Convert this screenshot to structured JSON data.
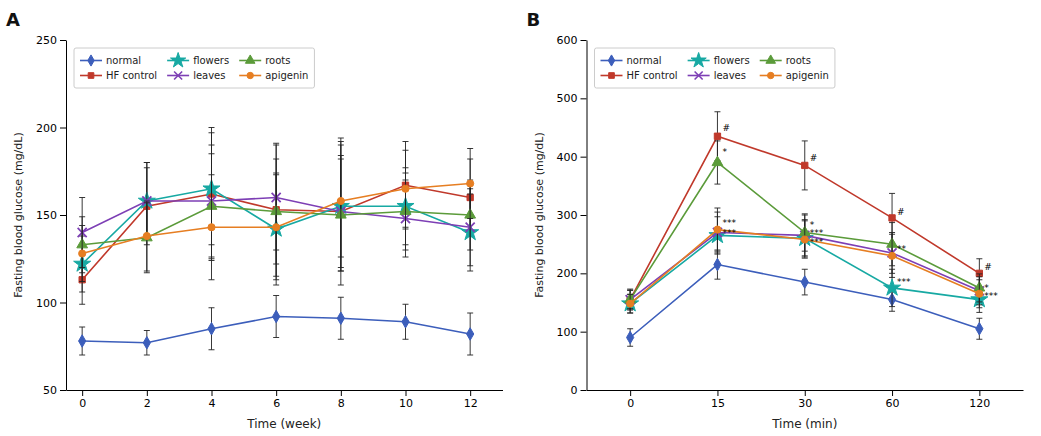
{
  "chart_data": [
    {
      "type": "line",
      "title": "A",
      "xlabel": "Time (week)",
      "ylabel": "Fasting blood glucose (mg/dL)",
      "x": [
        0,
        2,
        4,
        6,
        8,
        10,
        12
      ],
      "xlim": [
        -0.5,
        13
      ],
      "xticks": [
        0,
        2,
        4,
        6,
        8,
        10,
        12
      ],
      "ylim": [
        50,
        250
      ],
      "yticks": [
        50,
        100,
        150,
        200,
        250
      ],
      "legend": "upper left",
      "grid": false,
      "series": [
        {
          "name": "normal",
          "color": "#3C5EBB",
          "marker": "diamond",
          "values": [
            78,
            77,
            85,
            92,
            91,
            89,
            82
          ],
          "errors": [
            8,
            7,
            12,
            12,
            12,
            10,
            12
          ]
        },
        {
          "name": "HF control",
          "color": "#C0392B",
          "marker": "square",
          "values": [
            113,
            155,
            162,
            153,
            152,
            167,
            160
          ],
          "errors": [
            14,
            22,
            38,
            38,
            42,
            25,
            22
          ]
        },
        {
          "name": "flowers",
          "color": "#17A9A3",
          "marker": "star",
          "values": [
            122,
            158,
            165,
            142,
            155,
            155,
            140
          ],
          "errors": [
            16,
            22,
            32,
            32,
            37,
            22,
            22
          ]
        },
        {
          "name": "leaves",
          "color": "#7D3FB5",
          "marker": "x",
          "values": [
            140,
            158,
            158,
            160,
            152,
            148,
            143
          ],
          "errors": [
            20,
            22,
            32,
            30,
            32,
            22,
            22
          ]
        },
        {
          "name": "roots",
          "color": "#5B9B3A",
          "marker": "triangle",
          "values": [
            133,
            137,
            155,
            152,
            150,
            152,
            150
          ],
          "errors": [
            16,
            20,
            30,
            30,
            32,
            22,
            20
          ]
        },
        {
          "name": "apigenin",
          "color": "#E67E22",
          "marker": "circle",
          "values": [
            128,
            138,
            143,
            143,
            158,
            165,
            168
          ],
          "errors": [
            16,
            20,
            30,
            30,
            32,
            22,
            20
          ]
        }
      ]
    },
    {
      "type": "line",
      "title": "B",
      "xlabel": "Time (min)",
      "ylabel": "Fasting blood glucose (mg/dL)",
      "categories": [
        "0",
        "15",
        "30",
        "60",
        "120"
      ],
      "ylim": [
        0,
        600
      ],
      "yticks": [
        0,
        100,
        200,
        300,
        400,
        500,
        600
      ],
      "legend": "upper left",
      "grid": false,
      "series": [
        {
          "name": "normal",
          "color": "#3C5EBB",
          "marker": "diamond",
          "values": [
            90,
            215,
            185,
            155,
            105
          ],
          "errors": [
            15,
            25,
            22,
            20,
            18
          ]
        },
        {
          "name": "HF control",
          "color": "#C0392B",
          "marker": "square",
          "values": [
            155,
            435,
            385,
            295,
            200
          ],
          "errors": [
            18,
            42,
            42,
            42,
            25
          ]
        },
        {
          "name": "flowers",
          "color": "#17A9A3",
          "marker": "star",
          "values": [
            148,
            265,
            260,
            175,
            155
          ],
          "errors": [
            16,
            32,
            32,
            32,
            22
          ]
        },
        {
          "name": "leaves",
          "color": "#7D3FB5",
          "marker": "x",
          "values": [
            155,
            270,
            265,
            235,
            170
          ],
          "errors": [
            16,
            35,
            35,
            35,
            24
          ]
        },
        {
          "name": "roots",
          "color": "#5B9B3A",
          "marker": "triangle",
          "values": [
            155,
            390,
            270,
            250,
            175
          ],
          "errors": [
            16,
            37,
            32,
            37,
            24
          ]
        },
        {
          "name": "apigenin",
          "color": "#E67E22",
          "marker": "circle",
          "values": [
            148,
            275,
            258,
            230,
            165
          ],
          "errors": [
            16,
            37,
            32,
            37,
            24
          ]
        }
      ],
      "annotations": [
        {
          "text": "#",
          "x": "15",
          "y": 442
        },
        {
          "text": "*",
          "x": "15",
          "y": 400
        },
        {
          "text": "***",
          "x": "15",
          "y": 278
        },
        {
          "text": "***",
          "x": "15",
          "y": 262
        },
        {
          "text": "#",
          "x": "30",
          "y": 390
        },
        {
          "text": "*",
          "x": "30",
          "y": 275
        },
        {
          "text": "***",
          "x": "30",
          "y": 262
        },
        {
          "text": "***",
          "x": "30",
          "y": 247
        },
        {
          "text": "#",
          "x": "60",
          "y": 298
        },
        {
          "text": "**",
          "x": "60",
          "y": 235
        },
        {
          "text": "***",
          "x": "60",
          "y": 177
        },
        {
          "text": "#",
          "x": "120",
          "y": 203
        },
        {
          "text": "*",
          "x": "120",
          "y": 168
        },
        {
          "text": "***",
          "x": "120",
          "y": 153
        }
      ]
    }
  ]
}
